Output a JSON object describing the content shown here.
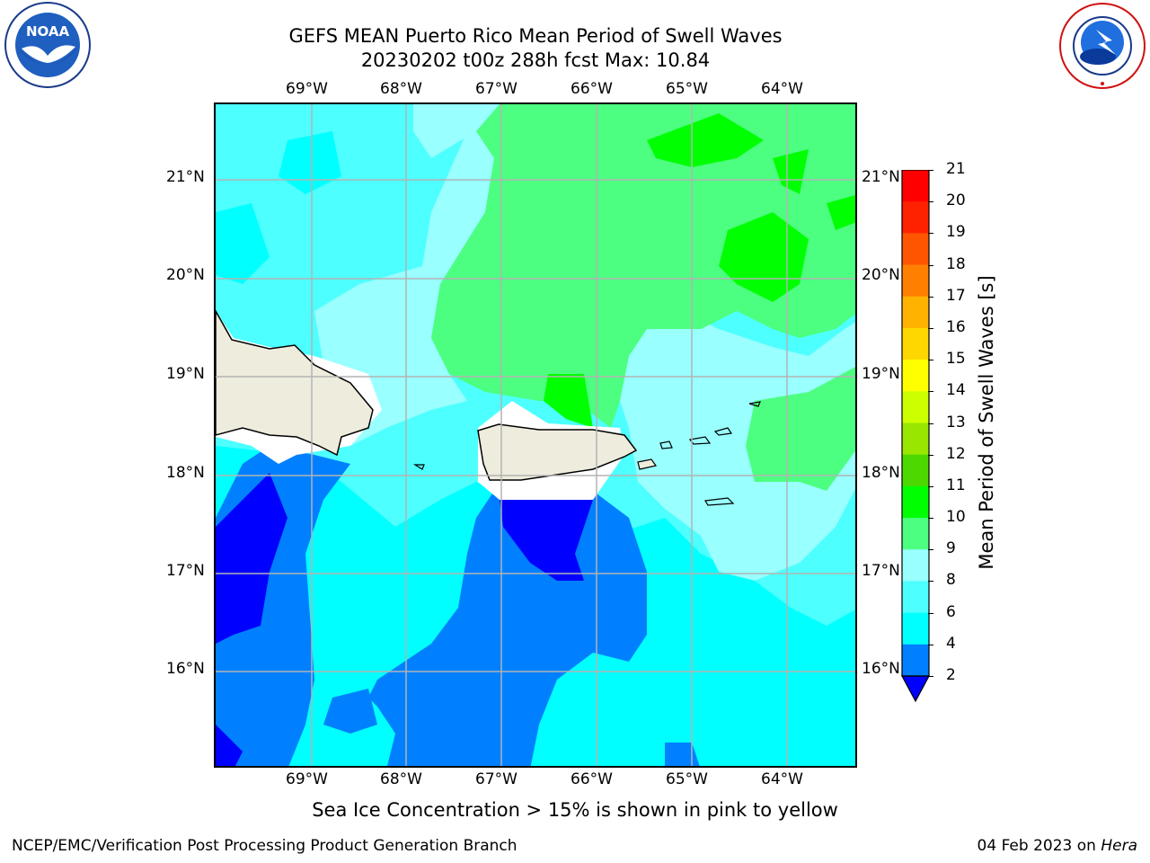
{
  "header": {
    "title": "GEFS MEAN Puerto Rico Mean Period of Swell Waves",
    "subtitle": "20230202 t00z 288h fcst   Max: 10.84"
  },
  "axes": {
    "lon_labels": [
      "69°W",
      "68°W",
      "67°W",
      "66°W",
      "65°W",
      "64°W"
    ],
    "lat_labels": [
      "21°N",
      "20°N",
      "19°N",
      "18°N",
      "17°N",
      "16°N"
    ]
  },
  "colorbar": {
    "title": "Mean Period of Swell Waves [s]",
    "levels": [
      "2",
      "4",
      "6",
      "8",
      "9",
      "10",
      "11",
      "12",
      "13",
      "14",
      "15",
      "16",
      "17",
      "18",
      "19",
      "20",
      "21"
    ],
    "colors": [
      "#0000ff",
      "#0080ff",
      "#00ffff",
      "#4dffff",
      "#99ffff",
      "#4dff80",
      "#00ff00",
      "#4dd900",
      "#99e600",
      "#ccff00",
      "#ffff00",
      "#ffd700",
      "#ffb300",
      "#ff8000",
      "#ff5500",
      "#ff2200",
      "#ff0000"
    ]
  },
  "note": "Sea Ice Concentration > 15% is shown in pink to yellow",
  "footer": {
    "left": "NCEP/EMC/Verification Post Processing Product Generation Branch",
    "date": "04 Feb 2023 on ",
    "machine": "Hera"
  },
  "logos": {
    "noaa": "NOAA",
    "nws": "NATIONAL WEATHER SERVICE"
  }
}
